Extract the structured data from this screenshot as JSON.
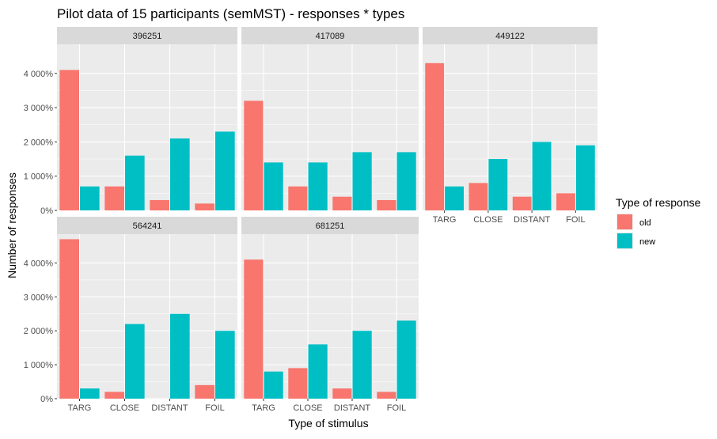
{
  "chart_data": {
    "type": "bar",
    "title": "Pilot data of 15 participants (semMST) - responses * types",
    "xlabel": "Type of stimulus",
    "ylabel": "Number of responses",
    "categories": [
      "TARG",
      "CLOSE",
      "DISTANT",
      "FOIL"
    ],
    "y_ticks": [
      0,
      1000,
      2000,
      3000,
      4000
    ],
    "y_tick_labels": [
      "0%",
      "1 000%",
      "2 000%",
      "3 000%",
      "4 000%"
    ],
    "ylim": [
      0,
      4850
    ],
    "grid": true,
    "legend": {
      "title": "Type of response",
      "placement": "right",
      "entries": [
        {
          "name": "old",
          "color": "#F8766D"
        },
        {
          "name": "new",
          "color": "#00BFC4"
        }
      ]
    },
    "colors": {
      "panel_bg": "#EBEBEB",
      "strip_bg": "#D9D9D9",
      "grid": "#FFFFFF",
      "text": "#000000",
      "tick_text": "#4D4D4D"
    },
    "facets": [
      {
        "label": "396251",
        "series": [
          {
            "name": "old",
            "values": [
              4100,
              700,
              300,
              200
            ]
          },
          {
            "name": "new",
            "values": [
              700,
              1600,
              2100,
              2300
            ]
          }
        ]
      },
      {
        "label": "417089",
        "series": [
          {
            "name": "old",
            "values": [
              3200,
              700,
              400,
              300
            ]
          },
          {
            "name": "new",
            "values": [
              1400,
              1400,
              1700,
              1700
            ]
          }
        ]
      },
      {
        "label": "449122",
        "series": [
          {
            "name": "old",
            "values": [
              4300,
              800,
              400,
              500
            ]
          },
          {
            "name": "new",
            "values": [
              700,
              1500,
              2000,
              1900
            ]
          }
        ]
      },
      {
        "label": "564241",
        "series": [
          {
            "name": "old",
            "values": [
              4700,
              200,
              0,
              400
            ]
          },
          {
            "name": "new",
            "values": [
              300,
              2200,
              2500,
              2000
            ]
          }
        ]
      },
      {
        "label": "681251",
        "series": [
          {
            "name": "old",
            "values": [
              4100,
              900,
              300,
              200
            ]
          },
          {
            "name": "new",
            "values": [
              800,
              1600,
              2000,
              2300
            ]
          }
        ]
      }
    ]
  }
}
